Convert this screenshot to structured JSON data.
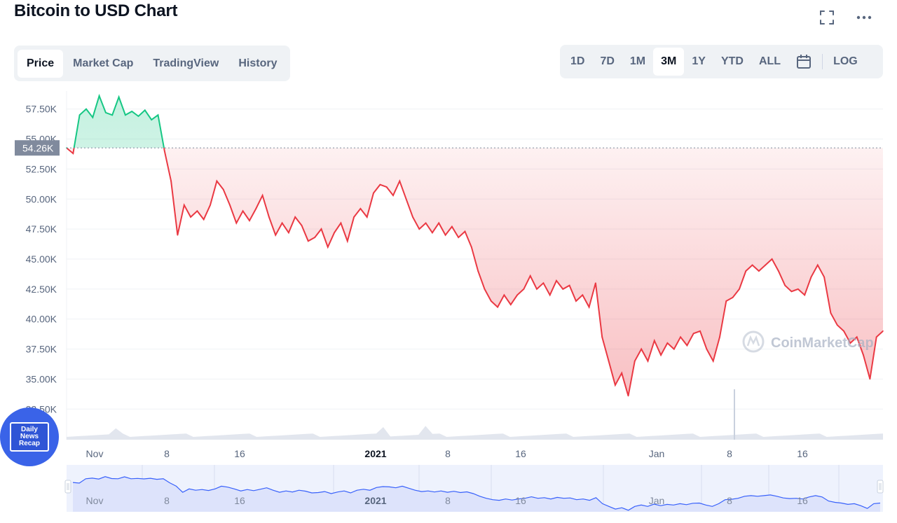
{
  "header": {
    "title": "Bitcoin to USD Chart"
  },
  "icons": {
    "fullscreen": "fullscreen-icon",
    "more": "more-dots-icon",
    "calendar": "calendar-icon",
    "watermark": "coinmarketcap-logo-icon"
  },
  "tabs": [
    {
      "label": "Price",
      "active": true
    },
    {
      "label": "Market Cap",
      "active": false
    },
    {
      "label": "TradingView",
      "active": false
    },
    {
      "label": "History",
      "active": false
    }
  ],
  "ranges": [
    {
      "label": "1D",
      "active": false
    },
    {
      "label": "7D",
      "active": false
    },
    {
      "label": "1M",
      "active": false
    },
    {
      "label": "3M",
      "active": true
    },
    {
      "label": "1Y",
      "active": false
    },
    {
      "label": "YTD",
      "active": false
    },
    {
      "label": "ALL",
      "active": false
    }
  ],
  "log_label": "LOG",
  "watermark": "CoinMarketCap",
  "badge": {
    "line1": "Daily",
    "line2": "News",
    "line3": "Recap"
  },
  "colors": {
    "up": "#16c784",
    "down": "#ea3943",
    "brush": "#3861fb",
    "accent_bg": "#eff2f5",
    "price_tag": "#808a9d"
  },
  "chart_data": {
    "type": "line",
    "title": "Bitcoin to USD Chart",
    "x_ticks": [
      "Nov",
      "8",
      "16",
      "2021",
      "8",
      "16",
      "Jan",
      "8",
      "16"
    ],
    "y_ticks": [
      "32.50K",
      "35.00K",
      "37.50K",
      "40.00K",
      "42.50K",
      "45.00K",
      "47.50K",
      "50.00K",
      "52.50K",
      "55.00K",
      "57.50K"
    ],
    "ylim": [
      31000,
      59000
    ],
    "reference": {
      "value": 54260,
      "label": "54.26K"
    },
    "grid": true,
    "series": [
      {
        "points": [
          [
            0,
            54.26
          ],
          [
            1,
            53.8
          ],
          [
            2,
            57.0
          ],
          [
            3,
            57.5
          ],
          [
            4,
            56.8
          ],
          [
            5,
            58.6
          ],
          [
            6,
            57.2
          ],
          [
            7,
            57.0
          ],
          [
            8,
            58.5
          ],
          [
            9,
            57.0
          ],
          [
            10,
            57.3
          ],
          [
            11,
            56.9
          ],
          [
            12,
            57.4
          ],
          [
            13,
            56.6
          ],
          [
            14,
            57.0
          ],
          [
            15,
            54.0
          ],
          [
            16,
            51.5
          ],
          [
            17,
            47.0
          ],
          [
            18,
            49.5
          ],
          [
            19,
            48.5
          ],
          [
            20,
            49.0
          ],
          [
            21,
            48.3
          ],
          [
            22,
            49.5
          ],
          [
            23,
            51.5
          ],
          [
            24,
            50.8
          ],
          [
            25,
            49.5
          ],
          [
            26,
            48.0
          ],
          [
            27,
            49.0
          ],
          [
            28,
            48.2
          ],
          [
            29,
            49.2
          ],
          [
            30,
            50.3
          ],
          [
            31,
            48.5
          ],
          [
            32,
            47.0
          ],
          [
            33,
            48.0
          ],
          [
            34,
            47.2
          ],
          [
            35,
            48.5
          ],
          [
            36,
            47.8
          ],
          [
            37,
            46.5
          ],
          [
            38,
            46.8
          ],
          [
            39,
            47.5
          ],
          [
            40,
            46.0
          ],
          [
            41,
            47.2
          ],
          [
            42,
            48.0
          ],
          [
            43,
            46.5
          ],
          [
            44,
            48.5
          ],
          [
            45,
            49.2
          ],
          [
            46,
            48.5
          ],
          [
            47,
            50.5
          ],
          [
            48,
            51.2
          ],
          [
            49,
            51.0
          ],
          [
            50,
            50.3
          ],
          [
            51,
            51.5
          ],
          [
            52,
            50.0
          ],
          [
            53,
            48.5
          ],
          [
            54,
            47.5
          ],
          [
            55,
            48.0
          ],
          [
            56,
            47.2
          ],
          [
            57,
            48.0
          ],
          [
            58,
            47.0
          ],
          [
            59,
            47.7
          ],
          [
            60,
            46.8
          ],
          [
            61,
            47.3
          ],
          [
            62,
            46.0
          ],
          [
            63,
            44.0
          ],
          [
            64,
            42.5
          ],
          [
            65,
            41.5
          ],
          [
            66,
            41.0
          ],
          [
            67,
            42.0
          ],
          [
            68,
            41.2
          ],
          [
            69,
            42.0
          ],
          [
            70,
            42.5
          ],
          [
            71,
            43.6
          ],
          [
            72,
            42.5
          ],
          [
            73,
            43.0
          ],
          [
            74,
            42.0
          ],
          [
            75,
            43.2
          ],
          [
            76,
            42.5
          ],
          [
            77,
            42.8
          ],
          [
            78,
            41.5
          ],
          [
            79,
            42.0
          ],
          [
            80,
            41.0
          ],
          [
            81,
            43.0
          ],
          [
            82,
            38.5
          ],
          [
            83,
            36.5
          ],
          [
            84,
            34.5
          ],
          [
            85,
            35.5
          ],
          [
            86,
            33.6
          ],
          [
            87,
            36.5
          ],
          [
            88,
            37.5
          ],
          [
            89,
            36.5
          ],
          [
            90,
            38.2
          ],
          [
            91,
            37.0
          ],
          [
            92,
            38.0
          ],
          [
            93,
            37.5
          ],
          [
            94,
            38.5
          ],
          [
            95,
            37.8
          ],
          [
            96,
            38.8
          ],
          [
            97,
            39.0
          ],
          [
            98,
            37.5
          ],
          [
            99,
            36.5
          ],
          [
            100,
            38.5
          ],
          [
            101,
            41.5
          ],
          [
            102,
            41.8
          ],
          [
            103,
            42.5
          ],
          [
            104,
            44.0
          ],
          [
            105,
            44.5
          ],
          [
            106,
            44.0
          ],
          [
            107,
            44.5
          ],
          [
            108,
            45.0
          ],
          [
            109,
            44.0
          ],
          [
            110,
            42.8
          ],
          [
            111,
            42.3
          ],
          [
            112,
            42.5
          ],
          [
            113,
            42.0
          ],
          [
            114,
            43.5
          ],
          [
            115,
            44.5
          ],
          [
            116,
            43.5
          ],
          [
            117,
            40.5
          ],
          [
            118,
            39.5
          ],
          [
            119,
            39.0
          ],
          [
            120,
            38.0
          ],
          [
            121,
            38.5
          ],
          [
            122,
            37.0
          ],
          [
            123,
            35.0
          ],
          [
            124,
            38.5
          ],
          [
            125,
            39.0
          ]
        ]
      }
    ]
  }
}
